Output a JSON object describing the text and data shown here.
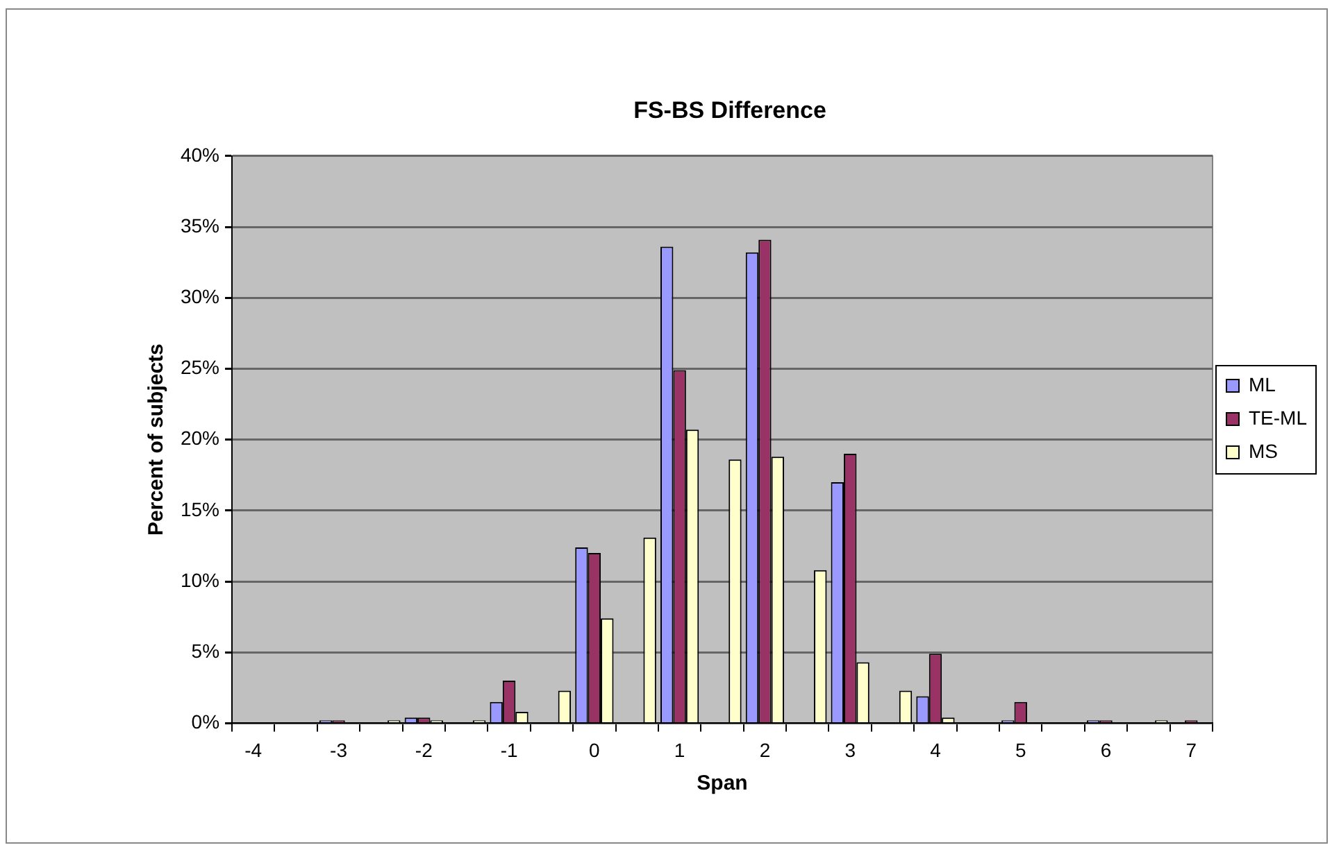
{
  "chart_data": {
    "type": "bar",
    "title": "FS-BS Difference",
    "xlabel": "Span",
    "ylabel": "Percent of subjects",
    "categories": [
      "-4",
      null,
      "-3",
      null,
      "-2",
      null,
      "-1",
      null,
      "0",
      null,
      "1",
      null,
      "2",
      null,
      "3",
      null,
      "4",
      null,
      "5",
      null,
      "6",
      null,
      "7"
    ],
    "series": [
      {
        "name": "ML",
        "color": "#9999ff",
        "values": [
          0,
          0,
          0.2,
          0,
          0.4,
          0,
          1.5,
          0,
          12.4,
          0,
          33.6,
          0,
          33.2,
          0,
          17.0,
          0,
          1.9,
          0,
          0.2,
          0,
          0.2,
          0,
          0
        ]
      },
      {
        "name": "TE-ML",
        "color": "#993366",
        "values": [
          0,
          0,
          0.2,
          0,
          0.4,
          0,
          3.0,
          0,
          12.0,
          0,
          24.9,
          0,
          34.1,
          0,
          19.0,
          0,
          4.9,
          0,
          1.5,
          0,
          0.2,
          0,
          0.2
        ]
      },
      {
        "name": "MS",
        "color": "#ffffcc",
        "values": [
          0,
          0,
          0,
          0.2,
          0.2,
          0.2,
          0.8,
          2.3,
          7.4,
          13.1,
          20.7,
          18.6,
          18.8,
          10.8,
          4.3,
          2.3,
          0.4,
          0,
          0,
          0,
          0,
          0.2,
          0
        ]
      }
    ],
    "ylim": [
      0,
      40
    ],
    "yticks": [
      {
        "value": 0,
        "label": "0%"
      },
      {
        "value": 5,
        "label": "5%"
      },
      {
        "value": 10,
        "label": "10%"
      },
      {
        "value": 15,
        "label": "15%"
      },
      {
        "value": 20,
        "label": "20%"
      },
      {
        "value": 25,
        "label": "25%"
      },
      {
        "value": 30,
        "label": "30%"
      },
      {
        "value": 35,
        "label": "35%"
      },
      {
        "value": 40,
        "label": "40%"
      }
    ],
    "grid": "y",
    "legend": "right"
  }
}
